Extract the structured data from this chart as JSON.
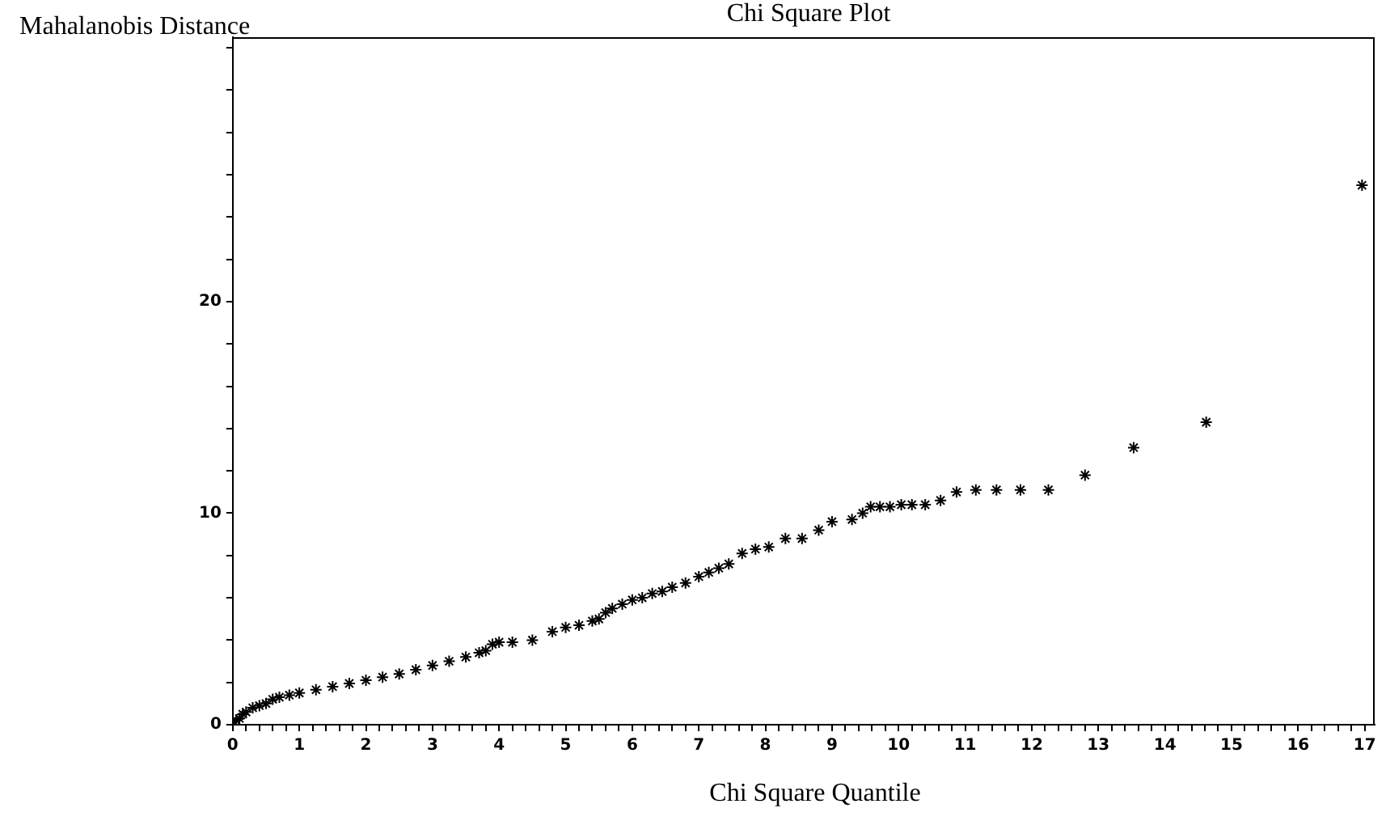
{
  "chart_data": {
    "type": "scatter",
    "title": "Chi Square Plot",
    "xlabel": "Chi Square Quantile",
    "ylabel": "Mahalanobis Distance",
    "marker": "cross",
    "grid": false,
    "legend": false,
    "xlim": [
      0,
      17.15
    ],
    "ylim": [
      0,
      32.5
    ],
    "xticks": [
      0,
      {
        "value": 0.2,
        "label": null
      },
      {
        "value": 0.4,
        "label": null
      },
      {
        "value": 0.6,
        "label": null
      },
      {
        "value": 0.8,
        "label": null
      },
      1,
      {
        "value": 1.2,
        "label": null
      },
      {
        "value": 1.4,
        "label": null
      },
      {
        "value": 1.6,
        "label": null
      },
      {
        "value": 1.8,
        "label": null
      },
      2,
      {
        "value": 2.2,
        "label": null
      },
      {
        "value": 2.4,
        "label": null
      },
      {
        "value": 2.6,
        "label": null
      },
      {
        "value": 2.8,
        "label": null
      },
      3,
      {
        "value": 3.2,
        "label": null
      },
      {
        "value": 3.4,
        "label": null
      },
      {
        "value": 3.6,
        "label": null
      },
      {
        "value": 3.8,
        "label": null
      },
      4,
      {
        "value": 4.2,
        "label": null
      },
      {
        "value": 4.4,
        "label": null
      },
      {
        "value": 4.6,
        "label": null
      },
      {
        "value": 4.8,
        "label": null
      },
      5,
      {
        "value": 5.2,
        "label": null
      },
      {
        "value": 5.4,
        "label": null
      },
      {
        "value": 5.6,
        "label": null
      },
      {
        "value": 5.8,
        "label": null
      },
      6,
      {
        "value": 6.2,
        "label": null
      },
      {
        "value": 6.4,
        "label": null
      },
      {
        "value": 6.6,
        "label": null
      },
      {
        "value": 6.8,
        "label": null
      },
      7,
      {
        "value": 7.2,
        "label": null
      },
      {
        "value": 7.4,
        "label": null
      },
      {
        "value": 7.6,
        "label": null
      },
      {
        "value": 7.8,
        "label": null
      },
      8,
      {
        "value": 8.2,
        "label": null
      },
      {
        "value": 8.4,
        "label": null
      },
      {
        "value": 8.6,
        "label": null
      },
      {
        "value": 8.8,
        "label": null
      },
      9,
      {
        "value": 9.2,
        "label": null
      },
      {
        "value": 9.4,
        "label": null
      },
      {
        "value": 9.6,
        "label": null
      },
      {
        "value": 9.8,
        "label": null
      },
      10,
      {
        "value": 10.2,
        "label": null
      },
      {
        "value": 10.4,
        "label": null
      },
      {
        "value": 10.6,
        "label": null
      },
      {
        "value": 10.8,
        "label": null
      },
      11,
      {
        "value": 11.2,
        "label": null
      },
      {
        "value": 11.4,
        "label": null
      },
      {
        "value": 11.6,
        "label": null
      },
      {
        "value": 11.8,
        "label": null
      },
      12,
      {
        "value": 12.2,
        "label": null
      },
      {
        "value": 12.4,
        "label": null
      },
      {
        "value": 12.6,
        "label": null
      },
      {
        "value": 12.8,
        "label": null
      },
      13,
      {
        "value": 13.2,
        "label": null
      },
      {
        "value": 13.4,
        "label": null
      },
      {
        "value": 13.6,
        "label": null
      },
      {
        "value": 13.8,
        "label": null
      },
      14,
      {
        "value": 14.2,
        "label": null
      },
      {
        "value": 14.4,
        "label": null
      },
      {
        "value": 14.6,
        "label": null
      },
      {
        "value": 14.8,
        "label": null
      },
      15,
      {
        "value": 15.2,
        "label": null
      },
      {
        "value": 15.4,
        "label": null
      },
      {
        "value": 15.6,
        "label": null
      },
      {
        "value": 15.8,
        "label": null
      },
      16,
      {
        "value": 16.2,
        "label": null
      },
      {
        "value": 16.4,
        "label": null
      },
      {
        "value": 16.6,
        "label": null
      },
      {
        "value": 16.8,
        "label": null
      },
      17
    ],
    "yticks": [
      0,
      {
        "value": 2,
        "label": null
      },
      {
        "value": 4,
        "label": null
      },
      {
        "value": 6,
        "label": null
      },
      {
        "value": 8,
        "label": null
      },
      10,
      {
        "value": 12,
        "label": null
      },
      {
        "value": 14,
        "label": null
      },
      {
        "value": 16,
        "label": null
      },
      {
        "value": 18,
        "label": null
      },
      20,
      {
        "value": 22,
        "label": null
      },
      {
        "value": 24,
        "label": null
      },
      {
        "value": 26,
        "label": null
      },
      {
        "value": 28,
        "label": null
      },
      {
        "value": 30,
        "label": null
      },
      {
        "value": 32,
        "label": null
      }
    ],
    "series": [
      {
        "color": "#000000",
        "x": [
          0,
          0.05,
          0.1,
          0.15,
          0.2,
          0.3,
          0.4,
          0.5,
          0.6,
          0.7,
          0.85,
          1.0,
          1.25,
          1.5,
          1.75,
          2.0,
          2.25,
          2.5,
          2.75,
          3.0,
          3.25,
          3.5,
          3.7,
          3.8,
          3.9,
          4.0,
          4.2,
          4.5,
          4.8,
          5.0,
          5.2,
          5.4,
          5.5,
          5.6,
          5.7,
          5.85,
          6.0,
          6.15,
          6.3,
          6.45,
          6.6,
          6.8,
          7.0,
          7.15,
          7.3,
          7.45,
          7.65,
          7.85,
          8.05,
          8.3,
          8.55,
          8.8,
          9.0,
          9.3,
          9.46,
          9.58,
          9.72,
          9.87,
          10.04,
          10.2,
          10.4,
          10.63,
          10.87,
          11.16,
          11.47,
          11.83,
          12.25,
          12.8,
          13.53,
          14.62,
          16.96
        ],
        "values": [
          0,
          0.2,
          0.3,
          0.5,
          0.6,
          0.8,
          0.9,
          1.0,
          1.2,
          1.3,
          1.4,
          1.5,
          1.65,
          1.8,
          1.95,
          2.1,
          2.25,
          2.4,
          2.6,
          2.8,
          3.0,
          3.2,
          3.4,
          3.5,
          3.8,
          3.9,
          3.9,
          4.0,
          4.4,
          4.6,
          4.7,
          4.9,
          5.0,
          5.3,
          5.5,
          5.7,
          5.9,
          6.0,
          6.2,
          6.3,
          6.5,
          6.7,
          7.0,
          7.2,
          7.4,
          7.6,
          8.1,
          8.3,
          8.4,
          8.8,
          8.8,
          9.2,
          9.6,
          9.7,
          10.0,
          10.3,
          10.3,
          10.3,
          10.4,
          10.4,
          10.4,
          10.6,
          11.0,
          11.1,
          11.1,
          11.1,
          11.1,
          11.8,
          13.1,
          14.3,
          25.5
        ]
      }
    ]
  }
}
